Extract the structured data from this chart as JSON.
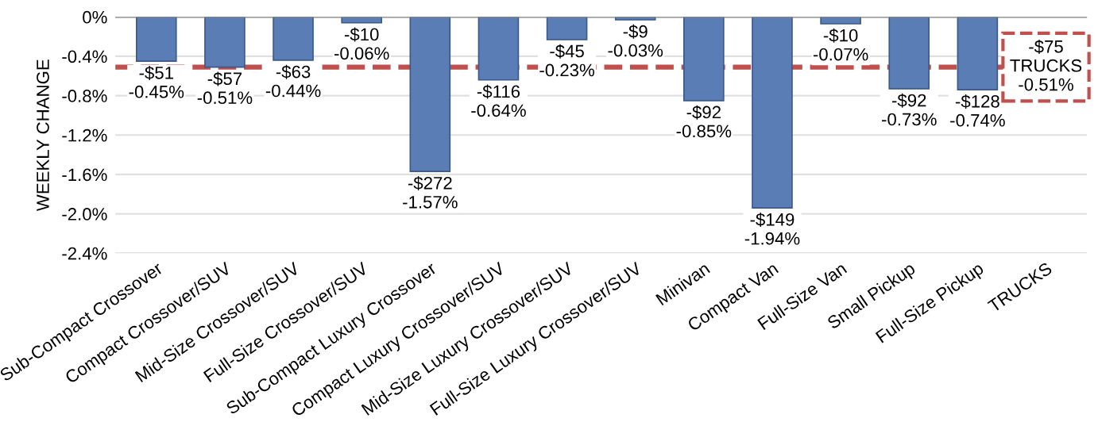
{
  "chart_data": {
    "type": "bar",
    "ylabel": "WEEKLY CHANGE",
    "categories": [
      "Sub-Compact Crossover",
      "Compact Crossover/SUV",
      "Mid-Size Crossover/SUV",
      "Full-Size Crossover/SUV",
      "Sub-Compact Luxury Crossover",
      "Compact Luxury Crossover/SUV",
      "Mid-Size Luxury Crossover/SUV",
      "Full-Size Luxury Crossover/SUV",
      "Minivan",
      "Compact Van",
      "Full-Size Van",
      "Small Pickup",
      "Full-Size Pickup",
      "TRUCKS"
    ],
    "values": [
      -0.45,
      -0.51,
      -0.44,
      -0.06,
      -1.57,
      -0.64,
      -0.23,
      -0.03,
      -0.85,
      -1.94,
      -0.07,
      -0.73,
      -0.74,
      null
    ],
    "value_labels": [
      "-$51\n-0.45%",
      "-$57\n-0.51%",
      "-$63\n-0.44%",
      "-$10\n-0.06%",
      "-$272\n-1.57%",
      "-$116\n-0.64%",
      "-$45\n-0.23%",
      "-$9\n-0.03%",
      "-$92\n-0.85%",
      "-$149\n-1.94%",
      "-$10\n-0.07%",
      "-$92\n-0.73%",
      "-$128\n-0.74%",
      null
    ],
    "color": "#5b7db5",
    "ylim": [
      -2.4,
      0
    ],
    "yticks": [
      {
        "value": 0,
        "label": "0%"
      },
      {
        "value": -0.4,
        "label": "-0.4%"
      },
      {
        "value": -0.8,
        "label": "-0.8%"
      },
      {
        "value": -1.2,
        "label": "-1.2%"
      },
      {
        "value": -1.6,
        "label": "-1.6%"
      },
      {
        "value": -2.0,
        "label": "-2.0%"
      },
      {
        "value": -2.4,
        "label": "-2.4%"
      }
    ],
    "grid": "y",
    "ref_lines": [
      {
        "axis": "y",
        "value": -0.51,
        "label": "-$75\nTRUCKS\n-0.51%",
        "color": "#c0504d",
        "line_style": "dashed"
      }
    ]
  }
}
